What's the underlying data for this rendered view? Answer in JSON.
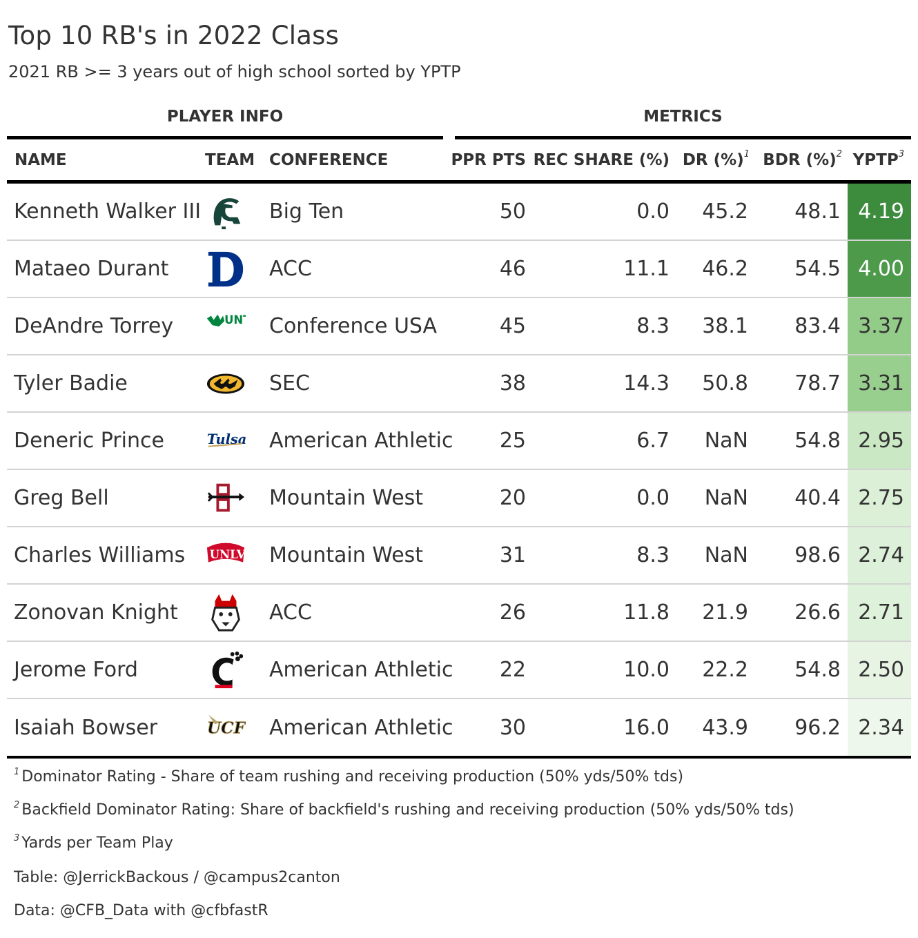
{
  "title": "Top 10 RB's in 2022 Class",
  "subtitle": "2021 RB >= 3 years out of high school sorted by YPTP",
  "spanners": {
    "left": "PLAYER INFO",
    "right": "METRICS"
  },
  "columns": {
    "name": "NAME",
    "team": "TEAM",
    "conference": "CONFERENCE",
    "ppr": "PPR PTS",
    "rec_share": "REC SHARE (%)",
    "dr": "DR (%)",
    "dr_mark": "1",
    "bdr": "BDR (%)",
    "bdr_mark": "2",
    "yptp": "YPTP",
    "yptp_mark": "3"
  },
  "rows": [
    {
      "name": "Kenneth Walker III",
      "team_logo": "michigan-state-spartan-icon",
      "conference": "Big Ten",
      "ppr": "50",
      "rec_share": "0.0",
      "dr": "45.2",
      "bdr": "48.1",
      "yptp": "4.19",
      "yptp_bg": "#3d8b3d",
      "yptp_fg": "#ffffff"
    },
    {
      "name": "Mataeo Durant",
      "team_logo": "duke-d-icon",
      "conference": "ACC",
      "ppr": "46",
      "rec_share": "11.1",
      "dr": "46.2",
      "bdr": "54.5",
      "yptp": "4.00",
      "yptp_bg": "#4d9a4b",
      "yptp_fg": "#ffffff"
    },
    {
      "name": "DeAndre Torrey",
      "team_logo": "north-texas-unt-icon",
      "conference": "Conference USA",
      "ppr": "45",
      "rec_share": "8.3",
      "dr": "38.1",
      "bdr": "83.4",
      "yptp": "3.37",
      "yptp_bg": "#93cc89",
      "yptp_fg": "#333333"
    },
    {
      "name": "Tyler Badie",
      "team_logo": "missouri-tiger-icon",
      "conference": "SEC",
      "ppr": "38",
      "rec_share": "14.3",
      "dr": "50.8",
      "bdr": "78.7",
      "yptp": "3.31",
      "yptp_bg": "#98ce8e",
      "yptp_fg": "#333333"
    },
    {
      "name": "Deneric Prince",
      "team_logo": "tulsa-script-icon",
      "conference": "American Athletic",
      "ppr": "25",
      "rec_share": "6.7",
      "dr": "NaN",
      "bdr": "54.8",
      "yptp": "2.95",
      "yptp_bg": "#cbe8c5",
      "yptp_fg": "#333333"
    },
    {
      "name": "Greg Bell",
      "team_logo": "san-diego-state-sd-icon",
      "conference": "Mountain West",
      "ppr": "20",
      "rec_share": "0.0",
      "dr": "NaN",
      "bdr": "40.4",
      "yptp": "2.75",
      "yptp_bg": "#dcf0d8",
      "yptp_fg": "#333333"
    },
    {
      "name": "Charles Williams",
      "team_logo": "unlv-icon",
      "conference": "Mountain West",
      "ppr": "31",
      "rec_share": "8.3",
      "dr": "NaN",
      "bdr": "98.6",
      "yptp": "2.74",
      "yptp_bg": "#ddf0d9",
      "yptp_fg": "#333333"
    },
    {
      "name": "Zonovan Knight",
      "team_logo": "nc-state-wolf-icon",
      "conference": "ACC",
      "ppr": "26",
      "rec_share": "11.8",
      "dr": "21.9",
      "bdr": "26.6",
      "yptp": "2.71",
      "yptp_bg": "#def1da",
      "yptp_fg": "#333333"
    },
    {
      "name": "Jerome Ford",
      "team_logo": "cincinnati-c-paw-icon",
      "conference": "American Athletic",
      "ppr": "22",
      "rec_share": "10.0",
      "dr": "22.2",
      "bdr": "54.8",
      "yptp": "2.50",
      "yptp_bg": "#e7f4e4",
      "yptp_fg": "#333333"
    },
    {
      "name": "Isaiah Bowser",
      "team_logo": "ucf-icon",
      "conference": "American Athletic",
      "ppr": "30",
      "rec_share": "16.0",
      "dr": "43.9",
      "bdr": "96.2",
      "yptp": "2.34",
      "yptp_bg": "#eef7ec",
      "yptp_fg": "#333333"
    }
  ],
  "footnotes": [
    {
      "mark": "1",
      "text": "Dominator Rating - Share of team rushing and receiving production (50% yds/50% tds)"
    },
    {
      "mark": "2",
      "text": "Backfield Dominator Rating: Share of backfield's rushing and receiving production (50% yds/50% tds)"
    },
    {
      "mark": "3",
      "text": "Yards per Team Play"
    }
  ],
  "source_notes": [
    "Table: @JerrickBackous / @campus2canton",
    "Data: @CFB_Data with @cfbfastR"
  ]
}
